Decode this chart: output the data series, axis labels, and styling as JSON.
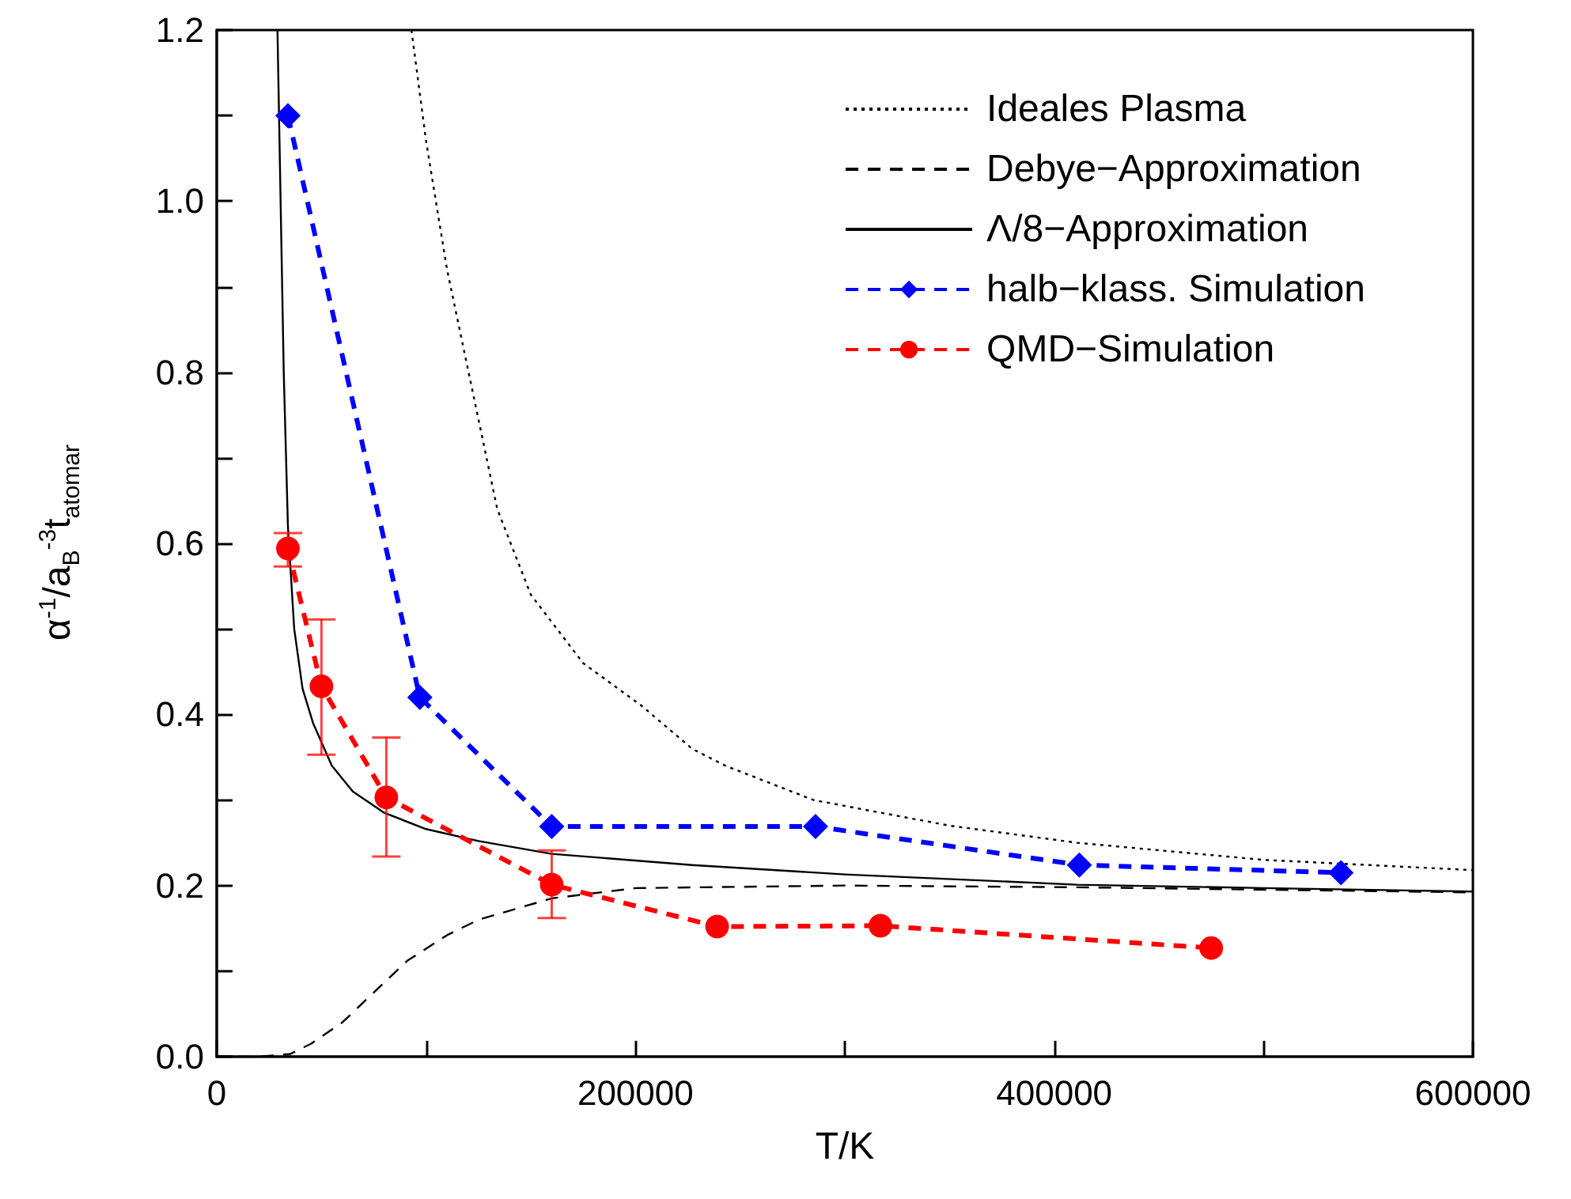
{
  "chart_data": {
    "type": "line",
    "xlabel": "T/K",
    "ylabel": "α$^{-1}$/a$_{B}$$^{-3}$t$_{atomar}$",
    "xlim": [
      0,
      600000
    ],
    "xticks": [
      0,
      {
        "value": 100000,
        "label": null
      },
      200000,
      {
        "value": 300000,
        "label": null
      },
      400000,
      {
        "value": 500000,
        "label": null
      },
      600000
    ],
    "ylim": [
      0,
      1.2
    ],
    "yticks": [
      {
        "value": 0,
        "label": "0.0"
      },
      {
        "value": 0.1,
        "label": null
      },
      {
        "value": 0.2,
        "label": "0.2"
      },
      {
        "value": 0.3,
        "label": null
      },
      {
        "value": 0.4,
        "label": "0.4"
      },
      {
        "value": 0.5,
        "label": null
      },
      {
        "value": 0.6,
        "label": "0.6"
      },
      {
        "value": 0.7,
        "label": null
      },
      {
        "value": 0.8,
        "label": "0.8"
      },
      {
        "value": 0.9,
        "label": null
      },
      {
        "value": 1.0,
        "label": "1.0"
      },
      {
        "value": 1.1,
        "label": null
      },
      {
        "value": 1.2,
        "label": "1.2"
      }
    ],
    "grid": false,
    "legend": "top right",
    "series": [
      {
        "name": "Ideales Plasma",
        "color": "#000000",
        "line_style": "dotted",
        "marker": "none",
        "x": [
          93000,
          100000,
          110000,
          122000,
          134000,
          150000,
          175000,
          203000,
          227000,
          243000,
          285000,
          350000,
          411000,
          500000,
          600000
        ],
        "values": [
          1.2,
          1.07,
          0.92,
          0.78,
          0.64,
          0.54,
          0.46,
          0.41,
          0.36,
          0.34,
          0.3,
          0.27,
          0.25,
          0.23,
          0.218
        ]
      },
      {
        "name": "Debye−Approximation",
        "color": "#000000",
        "line_style": "dashed",
        "marker": "none",
        "x": [
          0,
          20000,
          35000,
          45000,
          60000,
          75000,
          91000,
          110000,
          125000,
          160000,
          200000,
          300000,
          411000,
          600000
        ],
        "values": [
          0,
          0,
          0.003,
          0.015,
          0.04,
          0.075,
          0.112,
          0.142,
          0.16,
          0.185,
          0.197,
          0.2,
          0.198,
          0.192
        ]
      },
      {
        "name": "Λ/8−Approximation",
        "color": "#000000",
        "line_style": "solid",
        "marker": "none",
        "x": [
          29000,
          30500,
          32000,
          34000,
          37000,
          41000,
          46000,
          55000,
          65000,
          80000,
          100000,
          125000,
          160000,
          227000,
          300000,
          411000,
          500000,
          600000
        ],
        "values": [
          1.2,
          1.0,
          0.8,
          0.62,
          0.5,
          0.43,
          0.39,
          0.34,
          0.31,
          0.285,
          0.266,
          0.252,
          0.237,
          0.224,
          0.213,
          0.201,
          0.197,
          0.193
        ]
      },
      {
        "name": "halb−klass. Simulation",
        "color": "#0000ff",
        "line_style": "dashed",
        "marker": "diamond",
        "x": [
          34000,
          97000,
          160000,
          286000,
          412000,
          537000
        ],
        "values": [
          1.1,
          0.42,
          0.269,
          0.269,
          0.224,
          0.215
        ]
      },
      {
        "name": "QMD−Simulation",
        "color": "#ff0000",
        "line_style": "dashed",
        "marker": "circle",
        "x": [
          34000,
          50000,
          81000,
          160000,
          239000,
          317000,
          475000
        ],
        "values": [
          0.594,
          0.433,
          0.303,
          0.201,
          0.152,
          0.153,
          0.127
        ],
        "errors": [
          [
            0.573,
            0.612
          ],
          [
            0.353,
            0.511
          ],
          [
            0.234,
            0.373
          ],
          [
            0.162,
            0.241
          ],
          null,
          null,
          null
        ]
      }
    ]
  }
}
